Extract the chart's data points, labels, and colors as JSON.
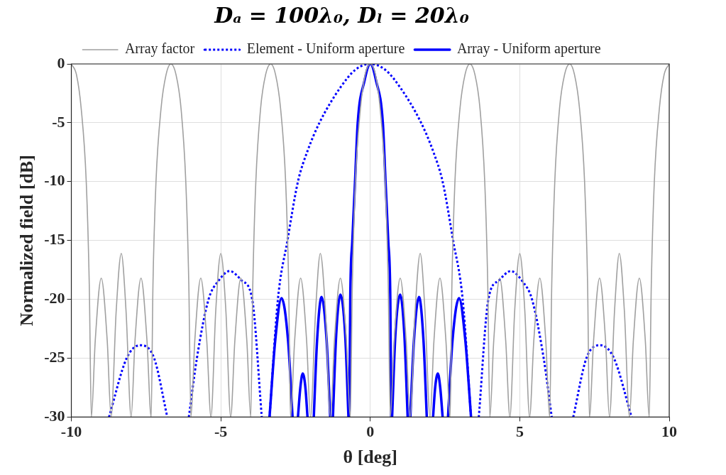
{
  "chart_data": {
    "type": "line",
    "title": "Dₐ = 100λ₀, Dₗ = 20λ₀",
    "xlabel": "θ [deg]",
    "ylabel": "Normalized field [dB]",
    "xlim": [
      -10,
      10
    ],
    "ylim": [
      -30,
      0
    ],
    "xticks": [
      -10,
      -5,
      0,
      5,
      10
    ],
    "yticks": [
      -30,
      -25,
      -20,
      -15,
      -10,
      -5,
      0
    ],
    "grid": true,
    "legend": "top",
    "series": [
      {
        "name": "Array factor",
        "color": "#a0a0a0",
        "line_style": "solid",
        "x": [
          -10,
          -9.83,
          -9.67,
          -9.5,
          -9.4,
          -9.33,
          -9.2,
          -9,
          -8.8,
          -8.67,
          -8.5,
          -8.33,
          -8.17,
          -8,
          -7.87,
          -7.67,
          -7.47,
          -7.33,
          -7.27,
          -7.17,
          -7,
          -6.83,
          -6.67,
          -6.5,
          -6.33,
          -6.17,
          -6.07,
          -6,
          -5.87,
          -5.67,
          -5.47,
          -5.33,
          -5.17,
          -5,
          -4.83,
          -4.67,
          -4.53,
          -4.33,
          -4.13,
          -4,
          -3.93,
          -3.83,
          -3.67,
          -3.5,
          -3.33,
          -3.17,
          -3,
          -2.83,
          -2.73,
          -2.67,
          -2.53,
          -2.33,
          -2.13,
          -2,
          -1.83,
          -1.67,
          -1.5,
          -1.33,
          -1.2,
          -1,
          -0.8,
          -0.67,
          -0.6,
          -0.5,
          -0.33,
          -0.17,
          0,
          0.17,
          0.33,
          0.5,
          0.6,
          0.67,
          0.8,
          1,
          1.2,
          1.33,
          1.5,
          1.67,
          1.83,
          2,
          2.13,
          2.33,
          2.53,
          2.67,
          2.73,
          2.83,
          3,
          3.17,
          3.33,
          3.5,
          3.67,
          3.83,
          3.93,
          4,
          4.13,
          4.33,
          4.53,
          4.67,
          4.83,
          5,
          5.17,
          5.33,
          5.47,
          5.67,
          5.87,
          6,
          6.07,
          6.17,
          6.33,
          6.5,
          6.67,
          6.83,
          7,
          7.17,
          7.27,
          7.33,
          7.47,
          7.67,
          7.87,
          8,
          8.17,
          8.33,
          8.5,
          8.67,
          8.8,
          9,
          9.2,
          9.33,
          9.4,
          9.5,
          9.67,
          9.83,
          10
        ],
        "values": [
          0,
          -0.9,
          -3.8,
          -10.1,
          -18.8,
          -30,
          -23.5,
          -18.2,
          -23.5,
          -30,
          -21,
          -16.1,
          -21,
          -30,
          -23.5,
          -18.2,
          -23.5,
          -30,
          -18.8,
          -10.1,
          -3.8,
          -0.9,
          0,
          -0.9,
          -3.8,
          -10.1,
          -18.8,
          -30,
          -23.5,
          -18.2,
          -23.5,
          -30,
          -21,
          -16.1,
          -21,
          -30,
          -23.5,
          -18.2,
          -23.5,
          -30,
          -18.8,
          -10.1,
          -3.8,
          -0.9,
          0,
          -0.9,
          -3.8,
          -10.1,
          -18.8,
          -30,
          -23.5,
          -18.2,
          -23.5,
          -30,
          -21,
          -16.1,
          -21,
          -30,
          -23.5,
          -18.2,
          -23.5,
          -30,
          -18.8,
          -10.1,
          -3.8,
          -0.9,
          0,
          -0.9,
          -3.8,
          -10.1,
          -18.8,
          -30,
          -23.5,
          -18.2,
          -23.5,
          -30,
          -21,
          -16.1,
          -21,
          -30,
          -23.5,
          -18.2,
          -23.5,
          -30,
          -18.8,
          -10.1,
          -3.8,
          -0.9,
          0,
          -0.9,
          -3.8,
          -10.1,
          -18.8,
          -30,
          -23.5,
          -18.2,
          -23.5,
          -30,
          -21,
          -16.1,
          -21,
          -30,
          -23.5,
          -18.2,
          -23.5,
          -30,
          -18.8,
          -10.1,
          -3.8,
          -0.9,
          0,
          -0.9,
          -3.8,
          -10.1,
          -18.8,
          -30,
          -23.5,
          -18.2,
          -23.5,
          -30,
          -21,
          -16.1,
          -21,
          -30,
          -23.5,
          -18.2,
          -23.5,
          -30,
          -18.8,
          -10.1,
          -3.8,
          -0.9,
          0
        ]
      },
      {
        "name": "Element - Uniform aperture",
        "color": "#0000ff",
        "line_style": "dotted",
        "x": [
          -8.74,
          -8.15,
          -7.7,
          -7.23,
          -6.79,
          -6.43,
          -6.07,
          -5.8,
          -5.41,
          -5.1,
          -4.7,
          -4.3,
          -3.95,
          -3.63,
          -3.5,
          -3.37,
          -3.09,
          -2.77,
          -2.42,
          -2.1,
          -1.7,
          -1,
          -0.5,
          0,
          0.5,
          1,
          1.7,
          2.1,
          2.42,
          2.77,
          3.09,
          3.37,
          3.5,
          3.63,
          3.95,
          4.3,
          4.7,
          5.1,
          5.41,
          5.8,
          6.07,
          6.43,
          6.79,
          7.23,
          7.7,
          8.15,
          8.74
        ],
        "values": [
          -30,
          -25,
          -23.9,
          -25,
          -30,
          null,
          -30,
          -25,
          -20,
          -18.5,
          -17.6,
          -18.4,
          -20,
          -30,
          null,
          -30,
          -20,
          -15,
          -10,
          -7.4,
          -5,
          -2,
          -0.5,
          0,
          -0.5,
          -2,
          -5,
          -7.4,
          -10,
          -15,
          -20,
          -30,
          null,
          -30,
          -20,
          -18.4,
          -17.6,
          -18.5,
          -20,
          -25,
          -30,
          null,
          -30,
          -25,
          -23.9,
          -25,
          -30
        ]
      },
      {
        "name": "Array - Uniform aperture",
        "color": "#0000ff",
        "line_style": "solid",
        "x": [
          -3.37,
          -3.18,
          -2.97,
          -2.75,
          -2.6,
          -2.5,
          -2.42,
          -2.34,
          -2.26,
          -2.17,
          -2.1,
          -1.99,
          -1.89,
          -1.78,
          -1.63,
          -1.46,
          -1.34,
          -1.29,
          -1.25,
          -1.14,
          -1,
          -0.84,
          -0.73,
          -0.715,
          -0.7,
          -0.67,
          -0.6,
          -0.51,
          -0.42,
          -0.2,
          0,
          0.2,
          0.42,
          0.51,
          0.6,
          0.67,
          0.7,
          0.715,
          0.73,
          0.84,
          1,
          1.14,
          1.25,
          1.29,
          1.34,
          1.46,
          1.63,
          1.78,
          1.89,
          1.99,
          2.1,
          2.17,
          2.26,
          2.34,
          2.42,
          2.5,
          2.6,
          2.75,
          2.97,
          3.18,
          3.37
        ],
        "values": [
          -30,
          -23.5,
          -19.9,
          -23.5,
          -30,
          null,
          -30,
          -27.5,
          -26.3,
          -27.5,
          -30,
          null,
          -30,
          -23.5,
          -19.8,
          -23.5,
          -30,
          null,
          -30,
          -23,
          -19.6,
          -23,
          -30,
          null,
          -30,
          -20,
          -15,
          -10,
          -5,
          -1.5,
          0,
          -1.5,
          -5,
          -10,
          -15,
          -20,
          -30,
          null,
          -30,
          -23,
          -19.6,
          -23,
          -30,
          null,
          -30,
          -23.5,
          -19.8,
          -23.5,
          -30,
          null,
          -30,
          -27.5,
          -26.3,
          -27.5,
          -30,
          null,
          -30,
          -23.5,
          -19.9,
          -23.5,
          -30
        ]
      }
    ]
  }
}
